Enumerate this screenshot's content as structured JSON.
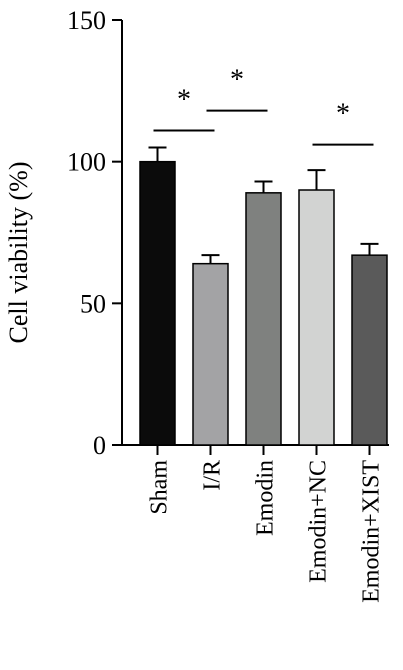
{
  "chart_data": {
    "type": "bar",
    "categories": [
      "Sham",
      "I/R",
      "Emodin",
      "Emodin+NC",
      "Emodin+XIST"
    ],
    "values": [
      100,
      64,
      89,
      90,
      67
    ],
    "errors": [
      5,
      3,
      4,
      7,
      4
    ],
    "bar_colors": [
      "#0b0b0b",
      "#a3a3a5",
      "#7f817f",
      "#d2d3d2",
      "#5a5a5a"
    ],
    "title": "",
    "xlabel": "",
    "ylabel": "Cell viability (%)",
    "ylim": [
      0,
      150
    ],
    "yticks": [
      0,
      50,
      100,
      150
    ],
    "grid": false,
    "legend": "none",
    "annotations": [
      {
        "text": "*",
        "from": 0,
        "to": 1,
        "y": 111
      },
      {
        "text": "*",
        "from": 1,
        "to": 2,
        "y": 118
      },
      {
        "text": "*",
        "from": 3,
        "to": 4,
        "y": 106
      }
    ]
  }
}
